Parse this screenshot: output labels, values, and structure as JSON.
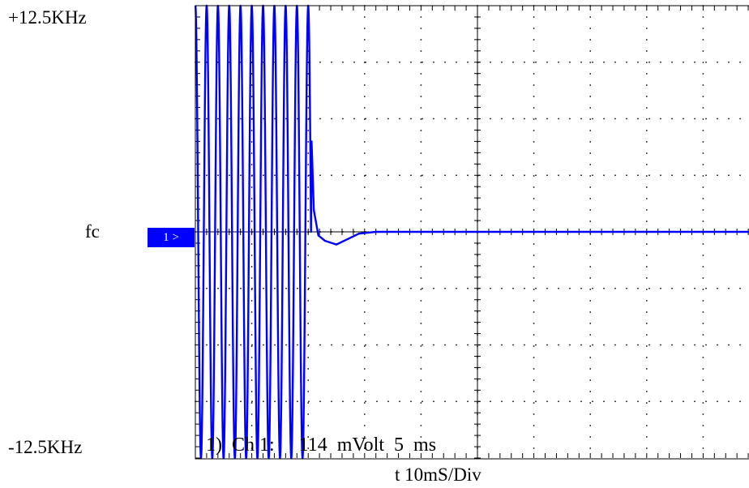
{
  "labels": {
    "top": "+12.5KHz",
    "bottom": "-12.5KHz",
    "center": "fc",
    "xaxis": "t 10mS/Div",
    "marker": "1",
    "status": "1)  Ch 1:     114  mVolt  5  ms"
  },
  "colors": {
    "trace": "#0000ff",
    "grid": "#000000",
    "background": "#ffffff"
  },
  "chart_data": {
    "type": "line",
    "title": "",
    "xlabel": "t 10mS/Div",
    "ylabel": "",
    "y_top_label": "+12.5KHz",
    "y_center_label": "fc",
    "y_bottom_label": "-12.5KHz",
    "x_divisions": 10,
    "y_divisions": 8,
    "ylim": [
      -12.5,
      12.5
    ],
    "xlim": [
      0,
      100
    ],
    "grid": true,
    "series": [
      {
        "color": "#0000ff",
        "oscillation": {
          "t_start": 0,
          "t_end": 20.5,
          "frequency_hz": 500,
          "amplitude_khz": 12.5
        },
        "transient": [
          {
            "t": 20.6,
            "f": 5.0
          },
          {
            "t": 21.0,
            "f": 1.2
          },
          {
            "t": 21.8,
            "f": -0.2
          },
          {
            "t": 23.0,
            "f": -0.5
          },
          {
            "t": 25.0,
            "f": -0.7
          },
          {
            "t": 27.0,
            "f": -0.4
          },
          {
            "t": 29.0,
            "f": -0.1
          },
          {
            "t": 32.0,
            "f": 0.0
          }
        ],
        "settled_value_khz": 0.0
      }
    ]
  }
}
